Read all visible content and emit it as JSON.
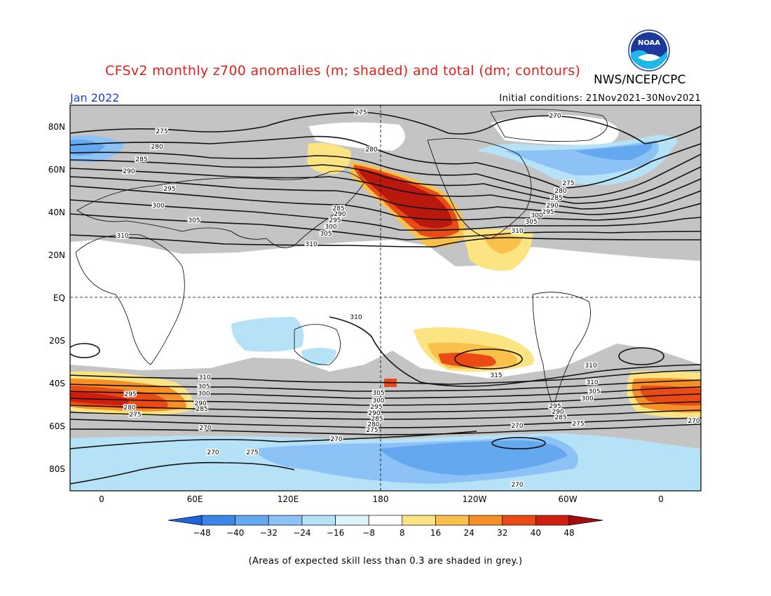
{
  "header": {
    "title": "CFSv2 monthly z700 anomalies (m; shaded) and total (dm; contours)",
    "agency": "NWS/NCEP/CPC",
    "month": "Jan 2022",
    "initial_conditions": "Initial conditions: 21Nov2021–30Nov2021",
    "logo_text": "NOAA"
  },
  "axes": {
    "lat_labels": [
      "80N",
      "60N",
      "40N",
      "20N",
      "EQ",
      "20S",
      "40S",
      "60S",
      "80S"
    ],
    "lon_labels": [
      "0",
      "60E",
      "120E",
      "180",
      "120W",
      "60W",
      "0"
    ]
  },
  "colorbar": {
    "labels": [
      "−48",
      "−40",
      "−32",
      "−24",
      "−16",
      "−8",
      "8",
      "16",
      "24",
      "32",
      "40",
      "48"
    ],
    "colors": [
      "#1f63d8",
      "#3a86ea",
      "#64a8f0",
      "#8cc2f5",
      "#b6e2f7",
      "#def4fb",
      "#ffffff",
      "#fce482",
      "#f9c04a",
      "#f58f26",
      "#ea4a14",
      "#cf1e10",
      "#a30d0b"
    ]
  },
  "contour_labels": [
    {
      "text": "275"
    },
    {
      "text": "270"
    },
    {
      "text": "275"
    },
    {
      "text": "280"
    },
    {
      "text": "285"
    },
    {
      "text": "290"
    },
    {
      "text": "295"
    },
    {
      "text": "300"
    },
    {
      "text": "305"
    },
    {
      "text": "310"
    },
    {
      "text": "280"
    },
    {
      "text": "285"
    },
    {
      "text": "290"
    },
    {
      "text": "295"
    },
    {
      "text": "300"
    },
    {
      "text": "305"
    },
    {
      "text": "310"
    },
    {
      "text": "275"
    },
    {
      "text": "280"
    },
    {
      "text": "285"
    },
    {
      "text": "290"
    },
    {
      "text": "295"
    },
    {
      "text": "300"
    },
    {
      "text": "305"
    },
    {
      "text": "310"
    },
    {
      "text": "310"
    },
    {
      "text": "310"
    },
    {
      "text": "315"
    },
    {
      "text": "310"
    },
    {
      "text": "305"
    },
    {
      "text": "300"
    },
    {
      "text": "295"
    },
    {
      "text": "290"
    },
    {
      "text": "285"
    },
    {
      "text": "280"
    },
    {
      "text": "275"
    },
    {
      "text": "310"
    },
    {
      "text": "305"
    },
    {
      "text": "300"
    },
    {
      "text": "295"
    },
    {
      "text": "290"
    },
    {
      "text": "285"
    },
    {
      "text": "280"
    },
    {
      "text": "275"
    },
    {
      "text": "270"
    },
    {
      "text": "305"
    },
    {
      "text": "300"
    },
    {
      "text": "295"
    },
    {
      "text": "290"
    },
    {
      "text": "285"
    },
    {
      "text": "280"
    },
    {
      "text": "275"
    },
    {
      "text": "270"
    },
    {
      "text": "270"
    },
    {
      "text": "270"
    },
    {
      "text": "275"
    },
    {
      "text": "270"
    },
    {
      "text": "270"
    },
    {
      "text": "270"
    }
  ],
  "footnote": "(Areas of expected skill less than 0.3 are shaded in grey.)"
}
